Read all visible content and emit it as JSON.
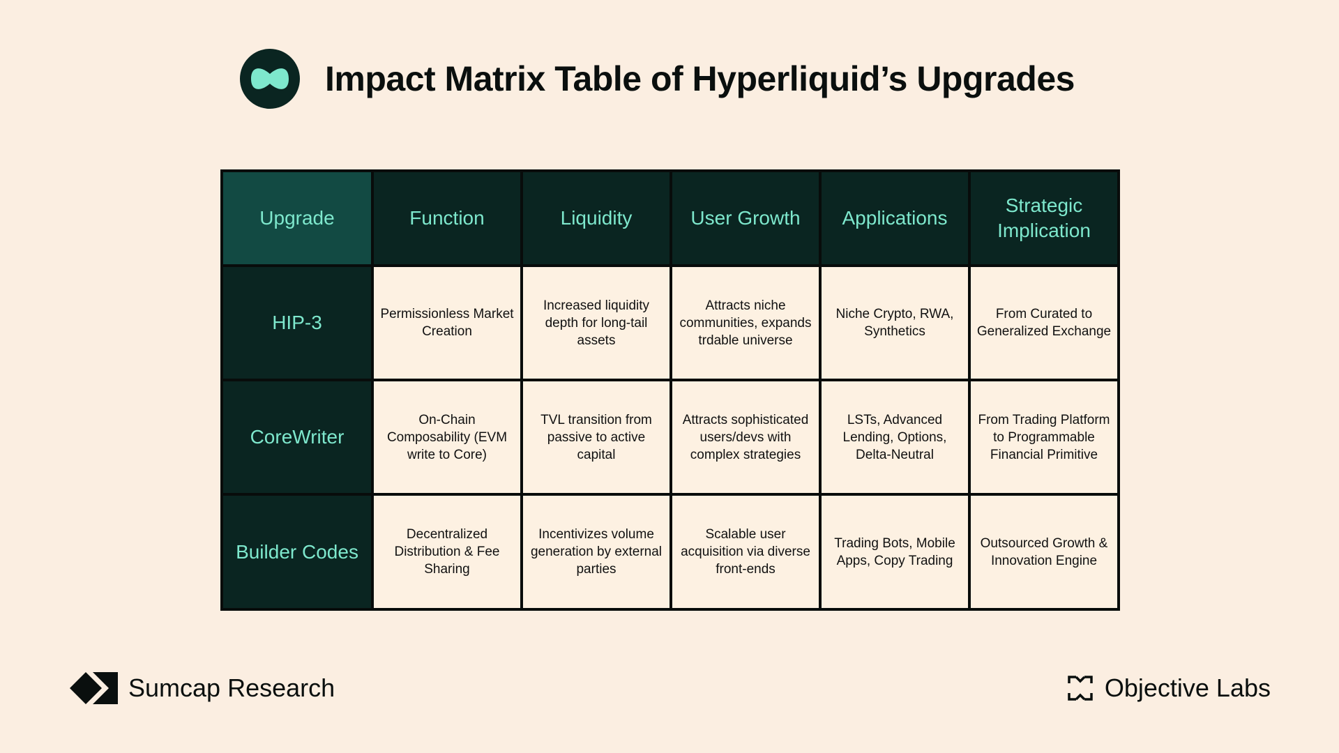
{
  "title": "Impact Matrix Table of Hyperliquid’s Upgrades",
  "table": {
    "headers": [
      "Upgrade",
      "Function",
      "Liquidity",
      "User Growth",
      "Applications",
      "Strategic Implication"
    ],
    "rows": [
      {
        "upgrade": "HIP-3",
        "cells": [
          "Permissionless Market Creation",
          "Increased liquidity depth for long-tail assets",
          "Attracts niche communities, expands trdable universe",
          "Niche Crypto, RWA, Synthetics",
          "From Curated to Generalized Exchange"
        ]
      },
      {
        "upgrade": "CoreWriter",
        "cells": [
          "On-Chain Composability (EVM write to Core)",
          "TVL transition from passive to active capital",
          "Attracts sophisticated users/devs with complex strategies",
          "LSTs, Advanced Lending, Options, Delta-Neutral",
          "From Trading Platform to Programmable Financial Primitive"
        ]
      },
      {
        "upgrade": "Builder Codes",
        "cells": [
          "Decentralized Distribution & Fee Sharing",
          "Incentivizes volume generation by external parties",
          "Scalable user acquisition via diverse front-ends",
          "Trading Bots, Mobile Apps, Copy Trading",
          "Outsourced Growth & Innovation Engine"
        ]
      }
    ]
  },
  "footer": {
    "left_brand": "Sumcap Research",
    "right_brand": "Objective Labs"
  },
  "colors": {
    "background": "#fbeee1",
    "header_dark": "#0a2521",
    "header_first": "#124a43",
    "accent_mint": "#7ee8cd",
    "cell_background": "#fdf1e2"
  }
}
